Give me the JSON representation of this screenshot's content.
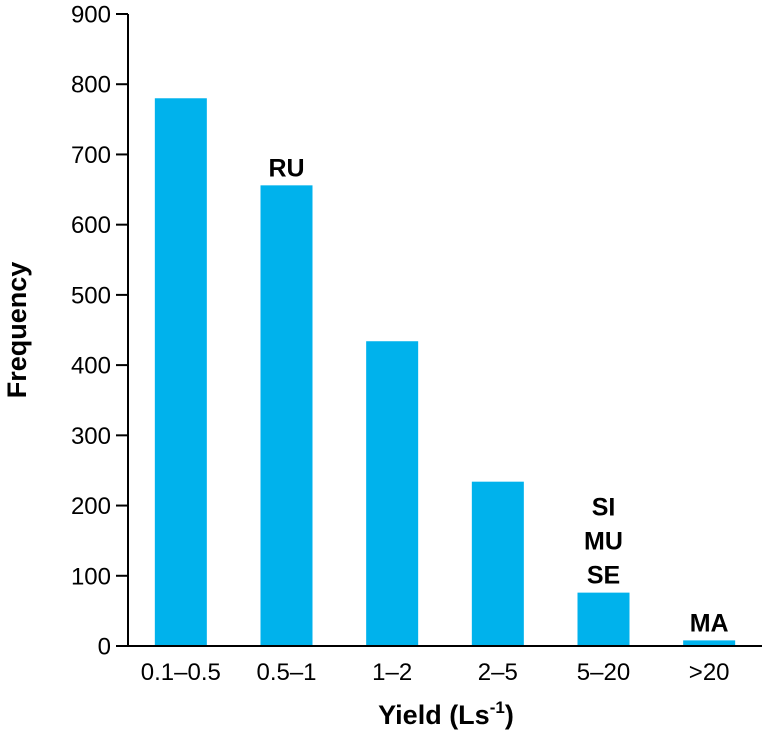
{
  "chart_data": {
    "type": "bar",
    "categories": [
      "0.1–0.5",
      "0.5–1",
      "1–2",
      "2–5",
      "5–20",
      ">20"
    ],
    "values": [
      780,
      656,
      434,
      234,
      76,
      8
    ],
    "xlabel": "Yield (Ls",
    "xlabel_sup": "-1",
    "xlabel_end": ")",
    "ylabel": "Frequency",
    "ylim": [
      0,
      900
    ],
    "yticks": [
      0,
      100,
      200,
      300,
      400,
      500,
      600,
      700,
      800,
      900
    ],
    "bar_color": "#00b2ec",
    "grid": false,
    "annotations": [
      {
        "category_index": 1,
        "lines": [
          "RU"
        ]
      },
      {
        "category_index": 4,
        "lines": [
          "SI",
          "MU",
          "SE"
        ]
      },
      {
        "category_index": 5,
        "lines": [
          "MA"
        ]
      }
    ]
  }
}
